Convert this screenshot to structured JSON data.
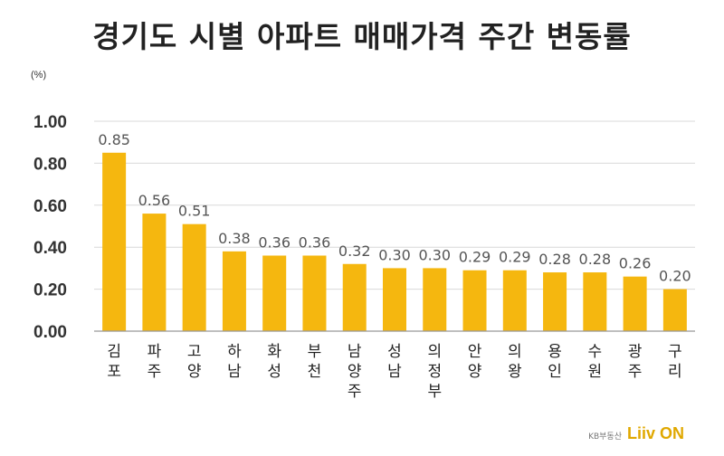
{
  "colors": {
    "bar": "#f5b70f",
    "grid": "#d9d9d9",
    "axis": "#999999"
  },
  "chart_data": {
    "type": "bar",
    "title": "경기도 시별 아파트 매매가격 주간 변동률",
    "unit": "(%)",
    "ylim": [
      0,
      1.0
    ],
    "yticks": [
      "0.00",
      "0.20",
      "0.40",
      "0.60",
      "0.80",
      "1.00"
    ],
    "grid": true,
    "categories": [
      "김포",
      "파주",
      "고양",
      "하남",
      "화성",
      "부천",
      "남양주",
      "성남",
      "의정부",
      "안양",
      "의왕",
      "용인",
      "수원",
      "광주",
      "구리"
    ],
    "values": [
      0.85,
      0.56,
      0.51,
      0.38,
      0.36,
      0.36,
      0.32,
      0.3,
      0.3,
      0.29,
      0.29,
      0.28,
      0.28,
      0.26,
      0.2
    ],
    "data_labels": [
      "0.85",
      "0.56",
      "0.51",
      "0.38",
      "0.36",
      "0.36",
      "0.32",
      "0.30",
      "0.30",
      "0.29",
      "0.29",
      "0.28",
      "0.28",
      "0.26",
      "0.20"
    ]
  },
  "logo": {
    "sub": "KB부동산",
    "main": "Liiv ON"
  }
}
